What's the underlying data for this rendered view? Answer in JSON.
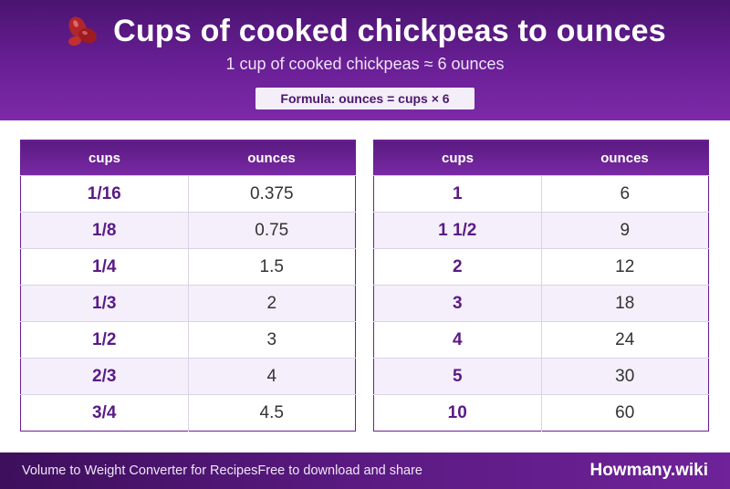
{
  "header": {
    "icon": "beans-icon",
    "title": "Cups of cooked chickpeas to ounces",
    "subtitle": "1 cup of cooked chickpeas ≈ 6 ounces",
    "formula": "Formula: ounces = cups × 6"
  },
  "table_left": {
    "headers": [
      "cups",
      "ounces"
    ],
    "rows": [
      [
        "1/16",
        "0.375"
      ],
      [
        "1/8",
        "0.75"
      ],
      [
        "1/4",
        "1.5"
      ],
      [
        "1/3",
        "2"
      ],
      [
        "1/2",
        "3"
      ],
      [
        "2/3",
        "4"
      ],
      [
        "3/4",
        "4.5"
      ]
    ]
  },
  "table_right": {
    "headers": [
      "cups",
      "ounces"
    ],
    "rows": [
      [
        "1",
        "6"
      ],
      [
        "1 1/2",
        "9"
      ],
      [
        "2",
        "12"
      ],
      [
        "3",
        "18"
      ],
      [
        "4",
        "24"
      ],
      [
        "5",
        "30"
      ],
      [
        "10",
        "60"
      ]
    ]
  },
  "footer": {
    "left_text": "Volume to Weight Converter for RecipesFree to download and share",
    "brand": "Howmany.wiki"
  },
  "colors": {
    "header_purple": "#6a1f96",
    "accent_text": "#5a1a86",
    "alt_row": "#f4effa"
  }
}
